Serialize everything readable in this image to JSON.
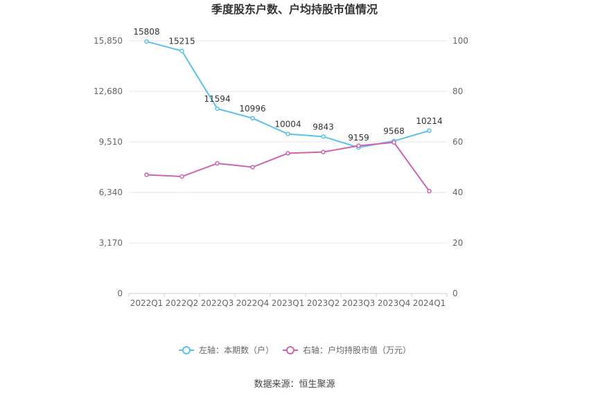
{
  "chart_data": {
    "type": "line",
    "title": "季度股东户数、户均持股市值情况",
    "categories": [
      "2022Q1",
      "2022Q2",
      "2022Q3",
      "2022Q4",
      "2023Q1",
      "2023Q2",
      "2023Q3",
      "2023Q4",
      "2024Q1"
    ],
    "left_axis": {
      "ticks": [
        "0",
        "3,170",
        "6,340",
        "9,510",
        "12,680",
        "15,850"
      ],
      "ylim": [
        0,
        15850
      ]
    },
    "right_axis": {
      "ticks": [
        "0",
        "20",
        "40",
        "60",
        "80",
        "100"
      ],
      "ylim": [
        0,
        100
      ]
    },
    "series": [
      {
        "name": "左轴：本期数（户）",
        "axis": "left",
        "color": "#5bc0eb",
        "values": [
          15808,
          15215,
          11594,
          10996,
          10004,
          9843,
          9159,
          9568,
          10214
        ],
        "labels": [
          "15808",
          "15215",
          "11594",
          "10996",
          "10004",
          "9843",
          "9159",
          "9568",
          "10214"
        ]
      },
      {
        "name": "右轴：户均持股市值（万元）",
        "axis": "right",
        "color": "#d063b0",
        "values": [
          47.0,
          46.3,
          51.5,
          50.0,
          55.5,
          56.0,
          58.5,
          59.8,
          40.5
        ]
      }
    ],
    "grid": true,
    "legend": "bottom-center",
    "source": "数据来源：恒生聚源"
  }
}
